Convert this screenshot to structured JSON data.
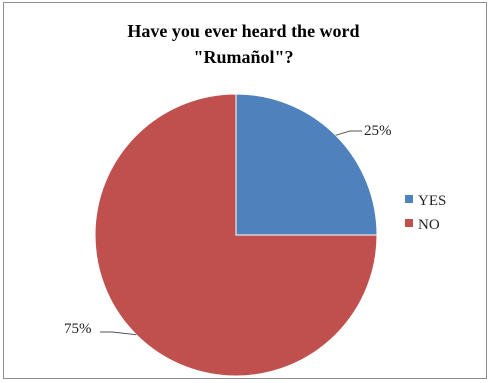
{
  "chart_data": {
    "type": "pie",
    "title_lines": [
      "Have you ever heard the word",
      "\"Rumañol\"?"
    ],
    "title": "Have you ever heard the word \"Rumañol\"?",
    "categories": [
      "YES",
      "NO"
    ],
    "values": [
      25,
      75
    ],
    "data_labels": [
      "25%",
      "75%"
    ],
    "colors": [
      "#4f81bd",
      "#c0504d"
    ],
    "legend": {
      "position": "right",
      "entries": [
        "YES",
        "NO"
      ]
    }
  }
}
